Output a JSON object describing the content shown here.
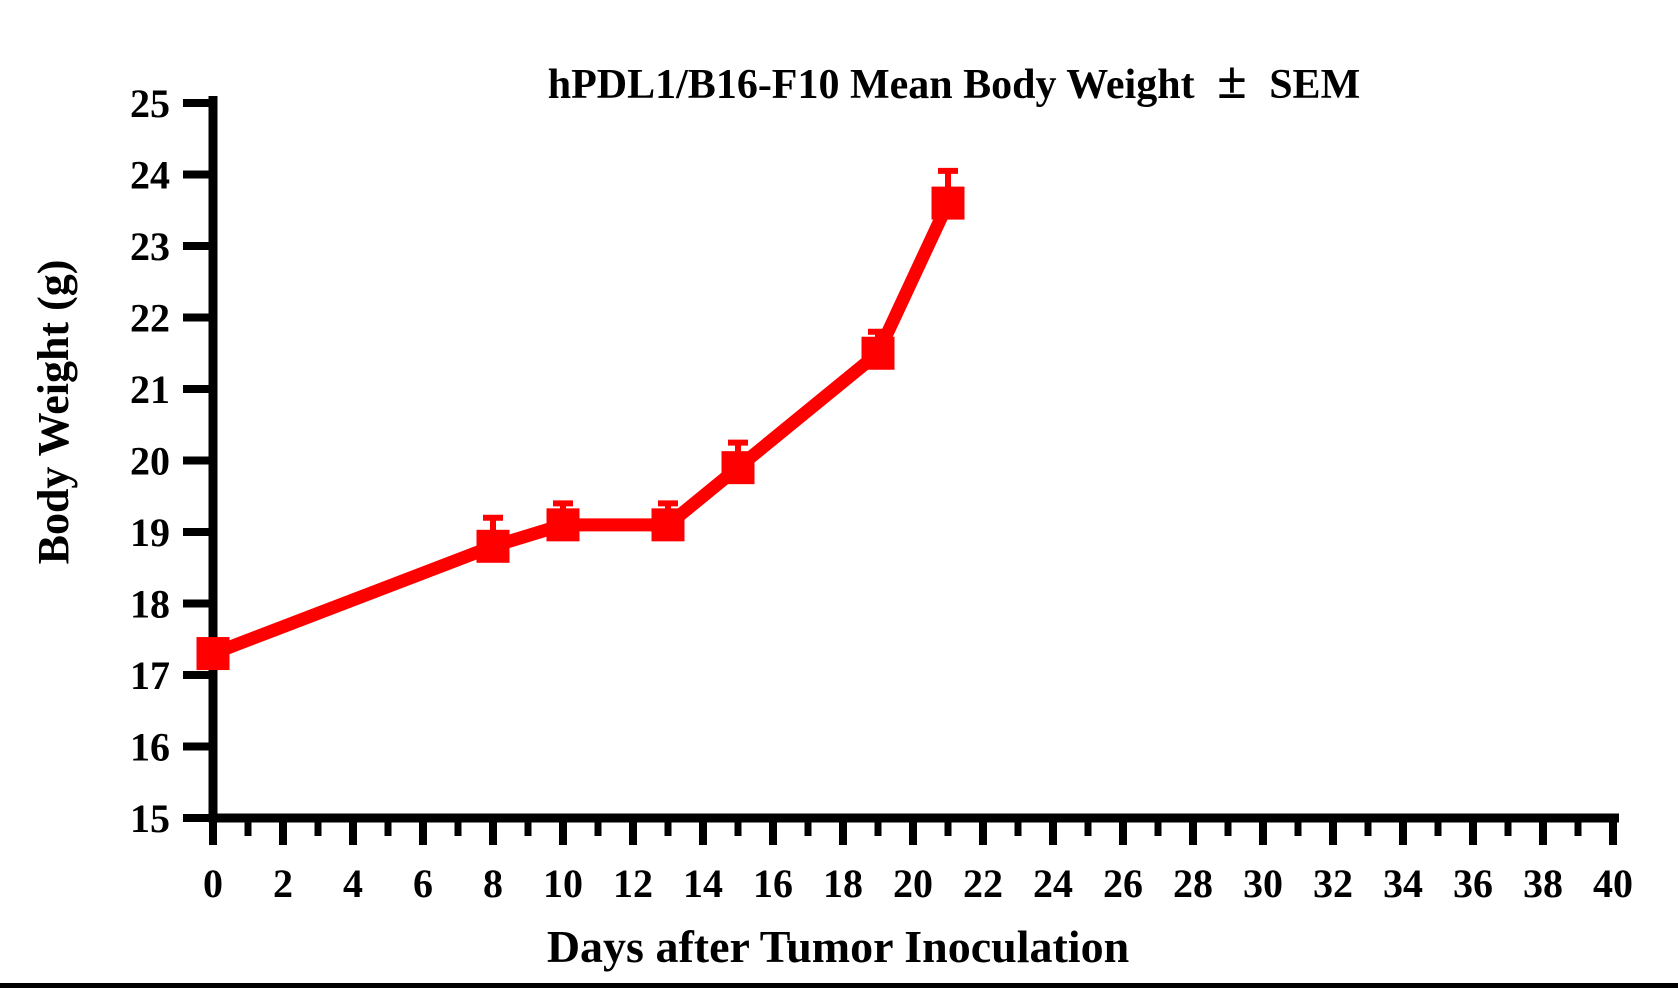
{
  "page": {
    "background": "#FFFFFF",
    "axis_color": "#000000",
    "series_color": "#FF0000"
  },
  "chart_data": {
    "type": "line",
    "title": "hPDL1/B16-F10 Mean Body Weight ± SEM",
    "title_parts": {
      "prefix": "hPDL1/B16-F10 Mean Body Weight",
      "plus_minus": "±",
      "suffix": "SEM"
    },
    "xlabel": "Days after Tumor Inoculation",
    "ylabel": "Body Weight (g)",
    "xlim": [
      0,
      40
    ],
    "ylim": [
      15,
      25
    ],
    "x_major_tick_step": 2,
    "x_minor_tick_step": 1,
    "y_tick_step": 1,
    "x_tick_labels": [
      "0",
      "2",
      "4",
      "6",
      "8",
      "10",
      "12",
      "14",
      "16",
      "18",
      "20",
      "22",
      "24",
      "26",
      "28",
      "30",
      "32",
      "34",
      "36",
      "38",
      "40"
    ],
    "y_tick_labels": [
      "15",
      "16",
      "17",
      "18",
      "19",
      "20",
      "21",
      "22",
      "23",
      "24",
      "25"
    ],
    "grid": false,
    "legend": "none",
    "error_bars": "SEM, upper side only",
    "series": [
      {
        "name": "hPDL1/B16-F10",
        "color": "#FF0000",
        "marker": "square",
        "x": [
          0,
          8,
          10,
          13,
          15,
          19,
          21
        ],
        "y": [
          17.3,
          18.8,
          19.1,
          19.1,
          19.9,
          21.5,
          23.6
        ],
        "sem_upper": [
          0,
          0.4,
          0.3,
          0.3,
          0.35,
          0.3,
          0.45
        ]
      }
    ]
  }
}
